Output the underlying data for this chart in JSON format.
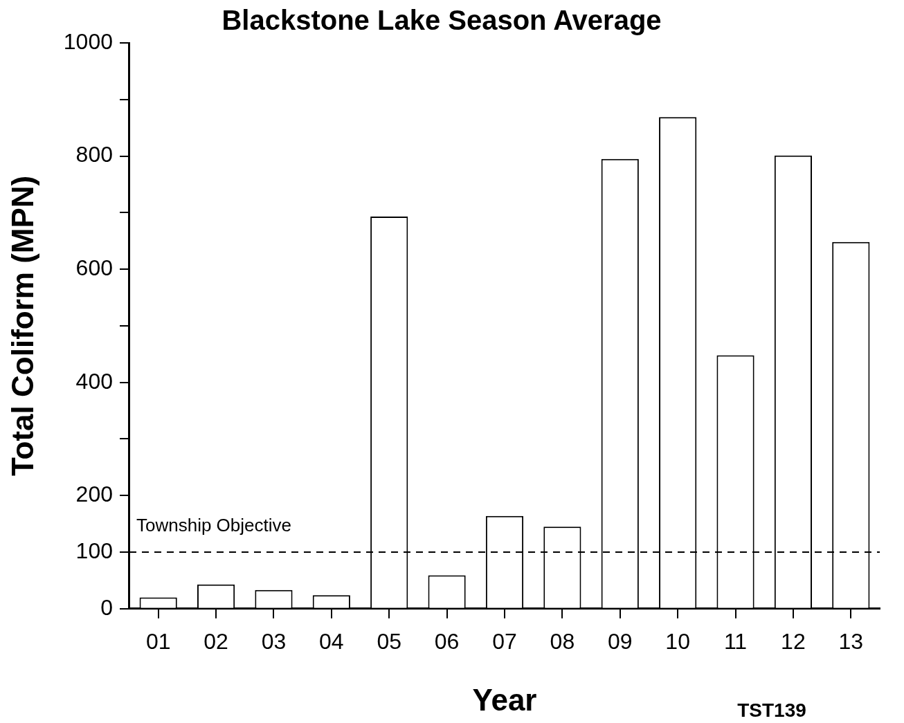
{
  "chart_data": {
    "type": "bar",
    "title": "Blackstone Lake Season Average",
    "xlabel": "Year",
    "ylabel": "Total Coliform (MPN)",
    "categories": [
      "01",
      "02",
      "03",
      "04",
      "05",
      "06",
      "07",
      "08",
      "09",
      "10",
      "11",
      "12",
      "13"
    ],
    "values": [
      20,
      43,
      33,
      24,
      693,
      59,
      164,
      145,
      795,
      869,
      448,
      801,
      648
    ],
    "color": "#ffffff",
    "ylim": [
      0,
      1000
    ],
    "yticks": [
      0,
      100,
      200,
      {
        "value": 300,
        "label": null
      },
      400,
      {
        "value": 500,
        "label": null
      },
      600,
      {
        "value": 700,
        "label": null
      },
      800,
      {
        "value": 900,
        "label": null
      },
      1000
    ],
    "ref_lines": [
      {
        "axis": "y",
        "value": 100,
        "label": "Township Objective",
        "color": "#000000",
        "line_style": "dashed"
      }
    ],
    "annotations": [
      "TST139"
    ],
    "grid": false,
    "legend": false
  }
}
